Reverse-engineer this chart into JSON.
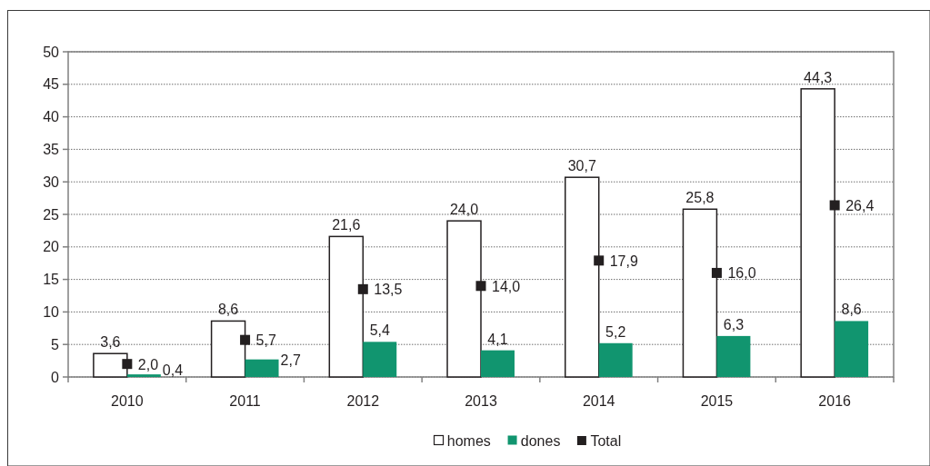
{
  "chart_data": {
    "type": "bar",
    "categories": [
      "2010",
      "2011",
      "2012",
      "2013",
      "2014",
      "2015",
      "2016"
    ],
    "series": [
      {
        "name": "homes",
        "color": "#ffffff",
        "values": [
          3.6,
          8.6,
          21.6,
          24.0,
          30.7,
          25.8,
          44.3
        ],
        "value_labels": [
          "3,6",
          "8,6",
          "21,6",
          "24,0",
          "30,7",
          "25,8",
          "44,3"
        ]
      },
      {
        "name": "dones",
        "color": "#11956f",
        "values": [
          0.4,
          2.7,
          5.4,
          4.1,
          5.2,
          6.3,
          8.6
        ],
        "value_labels": [
          "0,4",
          "2,7",
          "5,4",
          "4,1",
          "5,2",
          "6,3",
          "8,6"
        ]
      },
      {
        "name": "Total",
        "type": "scatter",
        "marker": "square",
        "color": "#231f20",
        "values": [
          2.0,
          5.7,
          13.5,
          14.0,
          17.9,
          16.0,
          26.4
        ],
        "value_labels": [
          "2,0",
          "5,7",
          "13,5",
          "14,0",
          "17,9",
          "16,0",
          "26,4"
        ]
      }
    ],
    "ylim": [
      0,
      50
    ],
    "yticks": [
      0,
      5,
      10,
      15,
      20,
      25,
      30,
      35,
      40,
      45,
      50
    ],
    "grid": "y",
    "legend": "bottom"
  }
}
